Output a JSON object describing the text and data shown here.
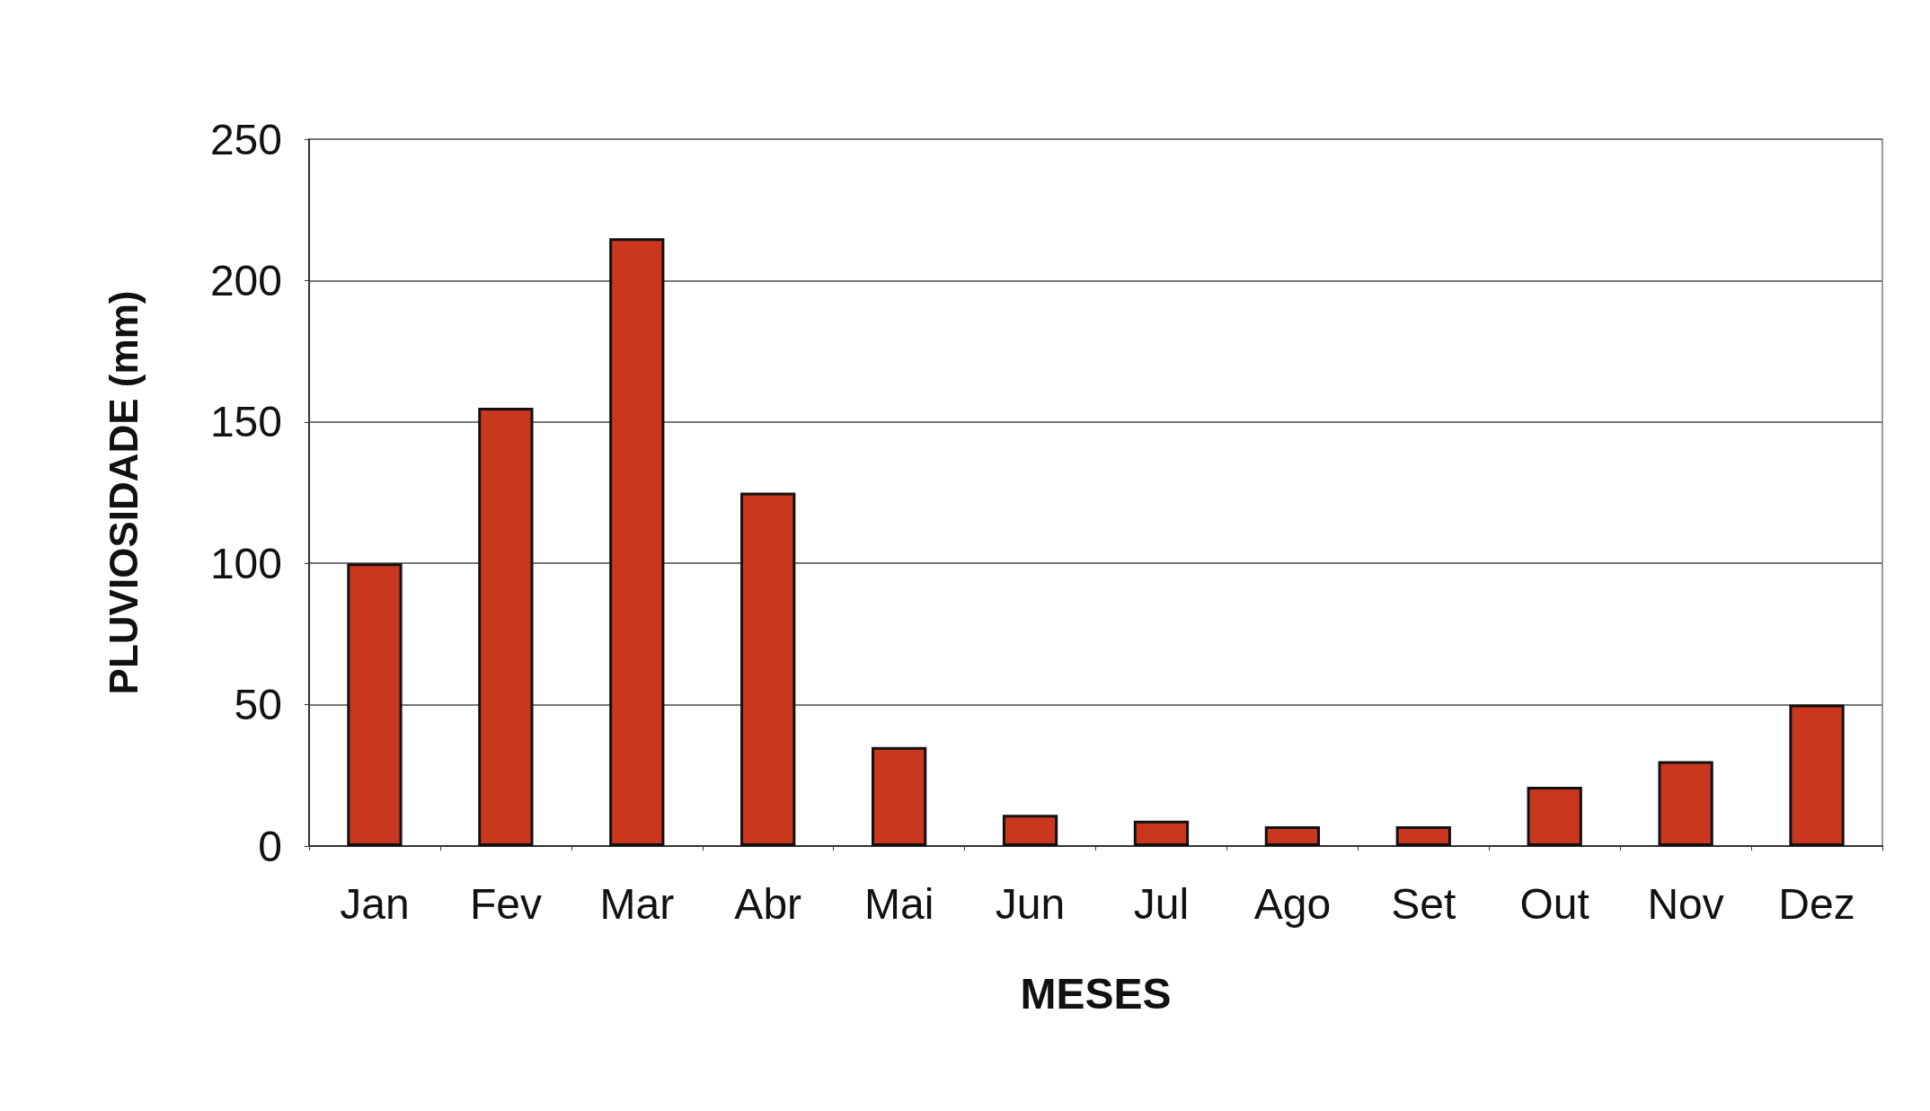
{
  "chart_data": {
    "type": "bar",
    "xlabel": "MESES",
    "ylabel": "PLUVIOSIDADE (mm)",
    "categories": [
      "Jan",
      "Fev",
      "Mar",
      "Abr",
      "Mai",
      "Jun",
      "Jul",
      "Ago",
      "Set",
      "Out",
      "Nov",
      "Dez"
    ],
    "values": [
      100,
      155,
      215,
      125,
      35,
      11,
      9,
      7,
      7,
      21,
      30,
      50
    ],
    "color": "#c8371e",
    "ylim": [
      0,
      250
    ],
    "yticks": [
      0,
      50,
      100,
      150,
      200,
      250
    ],
    "grid": "y"
  }
}
